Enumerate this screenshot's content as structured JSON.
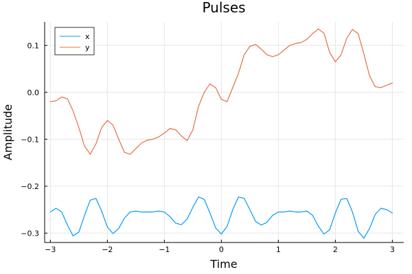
{
  "chart_data": {
    "type": "line",
    "title": "Pulses",
    "xlabel": "Time",
    "ylabel": "Amplitude",
    "xlim": [
      -3.1,
      3.2
    ],
    "ylim": [
      -0.32,
      0.15
    ],
    "xticks": [
      -3,
      -2,
      -1,
      0,
      1,
      2,
      3
    ],
    "xtick_labels": [
      "−3",
      "−2",
      "−1",
      "0",
      "1",
      "2",
      "3"
    ],
    "yticks": [
      -0.3,
      -0.2,
      -0.1,
      0.0,
      0.1
    ],
    "ytick_labels": [
      "−0.3",
      "−0.2",
      "−0.1",
      "0.0",
      "0.1"
    ],
    "grid": true,
    "legend_position": "top-left",
    "x": [
      -3.0,
      -2.9,
      -2.8,
      -2.7,
      -2.6,
      -2.5,
      -2.4,
      -2.3,
      -2.2,
      -2.1,
      -2.0,
      -1.9,
      -1.8,
      -1.7,
      -1.6,
      -1.5,
      -1.4,
      -1.3,
      -1.2,
      -1.1,
      -1.0,
      -0.9,
      -0.8,
      -0.7,
      -0.6,
      -0.5,
      -0.4,
      -0.3,
      -0.2,
      -0.1,
      0.0,
      0.1,
      0.2,
      0.3,
      0.4,
      0.5,
      0.6,
      0.7,
      0.8,
      0.9,
      1.0,
      1.1,
      1.2,
      1.3,
      1.4,
      1.5,
      1.6,
      1.7,
      1.8,
      1.9,
      2.0,
      2.1,
      2.2,
      2.3,
      2.4,
      2.5,
      2.6,
      2.7,
      2.8,
      2.9,
      3.0
    ],
    "series": [
      {
        "name": "x",
        "color": "#009af9",
        "values": [
          -0.255,
          -0.247,
          -0.255,
          -0.283,
          -0.306,
          -0.298,
          -0.262,
          -0.23,
          -0.226,
          -0.253,
          -0.287,
          -0.301,
          -0.29,
          -0.268,
          -0.255,
          -0.253,
          -0.255,
          -0.255,
          -0.255,
          -0.253,
          -0.255,
          -0.265,
          -0.279,
          -0.282,
          -0.27,
          -0.245,
          -0.223,
          -0.228,
          -0.257,
          -0.289,
          -0.302,
          -0.286,
          -0.25,
          -0.223,
          -0.226,
          -0.25,
          -0.275,
          -0.283,
          -0.277,
          -0.262,
          -0.255,
          -0.255,
          -0.253,
          -0.255,
          -0.255,
          -0.253,
          -0.262,
          -0.285,
          -0.302,
          -0.293,
          -0.257,
          -0.228,
          -0.226,
          -0.255,
          -0.296,
          -0.311,
          -0.29,
          -0.26,
          -0.247,
          -0.25,
          -0.257
        ]
      },
      {
        "name": "y",
        "color": "#e26f46",
        "values": [
          -0.02,
          -0.018,
          -0.01,
          -0.014,
          -0.04,
          -0.075,
          -0.115,
          -0.132,
          -0.11,
          -0.075,
          -0.06,
          -0.07,
          -0.1,
          -0.128,
          -0.132,
          -0.12,
          -0.108,
          -0.102,
          -0.1,
          -0.095,
          -0.087,
          -0.077,
          -0.08,
          -0.093,
          -0.103,
          -0.08,
          -0.03,
          0.0,
          0.018,
          0.01,
          -0.015,
          -0.02,
          0.01,
          0.04,
          0.08,
          0.098,
          0.102,
          0.092,
          0.08,
          0.076,
          0.08,
          0.09,
          0.1,
          0.104,
          0.106,
          0.113,
          0.125,
          0.135,
          0.126,
          0.085,
          0.065,
          0.08,
          0.115,
          0.134,
          0.125,
          0.082,
          0.035,
          0.012,
          0.01,
          0.015,
          0.02
        ]
      }
    ]
  }
}
